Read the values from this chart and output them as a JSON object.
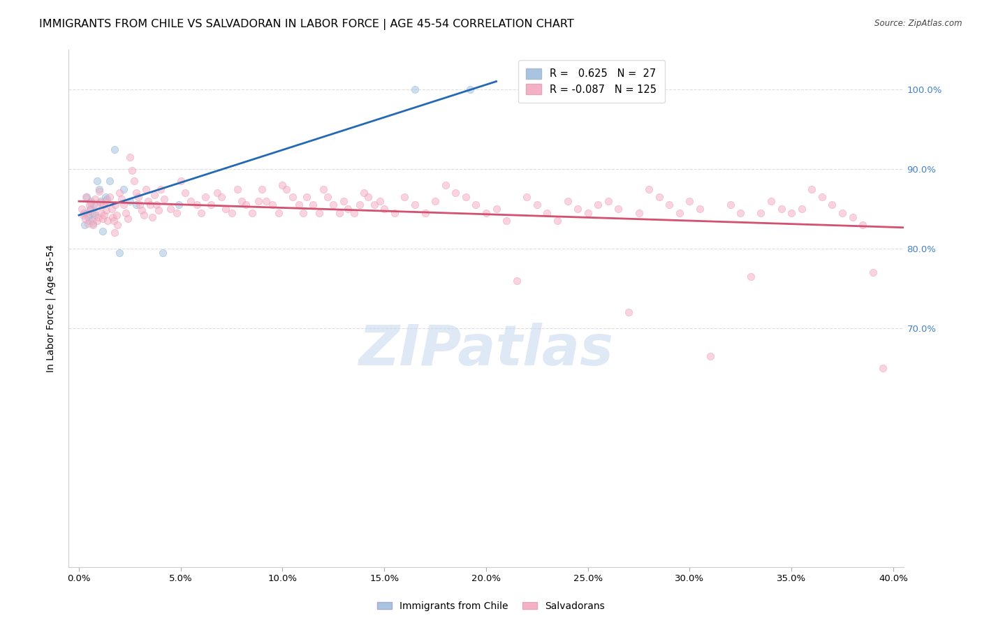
{
  "title": "IMMIGRANTS FROM CHILE VS SALVADORAN IN LABOR FORCE | AGE 45-54 CORRELATION CHART",
  "source": "Source: ZipAtlas.com",
  "ylabel": "In Labor Force | Age 45-54",
  "x_tick_labels": [
    "0.0%",
    "5.0%",
    "10.0%",
    "15.0%",
    "20.0%",
    "25.0%",
    "30.0%",
    "35.0%",
    "40.0%"
  ],
  "x_tick_values": [
    0.0,
    5.0,
    10.0,
    15.0,
    20.0,
    25.0,
    30.0,
    35.0,
    40.0
  ],
  "y_tick_labels": [
    "100.0%",
    "90.0%",
    "80.0%",
    "70.0%"
  ],
  "y_tick_values": [
    100.0,
    90.0,
    80.0,
    70.0
  ],
  "xlim": [
    -0.5,
    40.5
  ],
  "ylim": [
    40.0,
    105.0
  ],
  "watermark": "ZIPatlas",
  "blue_scatter_color": "#a8c4e0",
  "blue_edge_color": "#7aaace",
  "pink_scatter_color": "#f5b0c5",
  "pink_edge_color": "#e890aa",
  "blue_line_color": "#2469b3",
  "pink_line_color": "#d45070",
  "background_color": "#ffffff",
  "grid_color": "#dddddd",
  "title_fontsize": 11.5,
  "axis_label_fontsize": 10,
  "tick_fontsize": 9.5,
  "right_y_tick_color": "#4080cc",
  "scatter_size": 55,
  "scatter_alpha": 0.55,
  "blue_points": [
    [
      0.23,
      84.5
    ],
    [
      0.28,
      83.0
    ],
    [
      0.38,
      86.5
    ],
    [
      0.45,
      84.0
    ],
    [
      0.5,
      83.5
    ],
    [
      0.55,
      85.0
    ],
    [
      0.6,
      86.0
    ],
    [
      0.65,
      84.5
    ],
    [
      0.68,
      83.2
    ],
    [
      0.72,
      85.5
    ],
    [
      0.8,
      84.2
    ],
    [
      0.88,
      88.5
    ],
    [
      1.0,
      87.5
    ],
    [
      1.05,
      86.0
    ],
    [
      1.15,
      82.2
    ],
    [
      1.3,
      86.5
    ],
    [
      1.38,
      86.2
    ],
    [
      1.5,
      88.5
    ],
    [
      1.75,
      92.5
    ],
    [
      2.0,
      79.5
    ],
    [
      2.2,
      87.5
    ],
    [
      2.5,
      86.0
    ],
    [
      2.8,
      85.5
    ],
    [
      4.1,
      79.5
    ],
    [
      4.9,
      85.5
    ],
    [
      16.5,
      100.0
    ],
    [
      19.2,
      100.0
    ]
  ],
  "pink_points": [
    [
      0.15,
      85.0
    ],
    [
      0.22,
      84.2
    ],
    [
      0.3,
      83.8
    ],
    [
      0.35,
      86.5
    ],
    [
      0.4,
      84.5
    ],
    [
      0.45,
      83.2
    ],
    [
      0.5,
      85.5
    ],
    [
      0.55,
      84.8
    ],
    [
      0.6,
      85.8
    ],
    [
      0.65,
      83.5
    ],
    [
      0.7,
      83.0
    ],
    [
      0.75,
      84.5
    ],
    [
      0.8,
      86.2
    ],
    [
      0.85,
      85.5
    ],
    [
      0.9,
      83.5
    ],
    [
      0.95,
      84.0
    ],
    [
      1.0,
      87.2
    ],
    [
      1.05,
      85.8
    ],
    [
      1.1,
      84.5
    ],
    [
      1.15,
      83.8
    ],
    [
      1.2,
      85.5
    ],
    [
      1.25,
      84.2
    ],
    [
      1.3,
      86.0
    ],
    [
      1.35,
      84.8
    ],
    [
      1.4,
      83.5
    ],
    [
      1.5,
      86.5
    ],
    [
      1.6,
      85.0
    ],
    [
      1.65,
      84.0
    ],
    [
      1.7,
      83.5
    ],
    [
      1.75,
      82.0
    ],
    [
      1.8,
      85.5
    ],
    [
      1.85,
      84.2
    ],
    [
      1.9,
      83.0
    ],
    [
      2.0,
      87.0
    ],
    [
      2.1,
      86.2
    ],
    [
      2.2,
      85.5
    ],
    [
      2.3,
      84.5
    ],
    [
      2.4,
      83.8
    ],
    [
      2.5,
      91.5
    ],
    [
      2.6,
      89.8
    ],
    [
      2.7,
      88.5
    ],
    [
      2.8,
      87.0
    ],
    [
      2.9,
      86.5
    ],
    [
      3.0,
      85.5
    ],
    [
      3.1,
      84.8
    ],
    [
      3.2,
      84.2
    ],
    [
      3.3,
      87.5
    ],
    [
      3.4,
      86.0
    ],
    [
      3.5,
      85.5
    ],
    [
      3.6,
      84.0
    ],
    [
      3.7,
      86.8
    ],
    [
      3.8,
      85.5
    ],
    [
      3.9,
      84.8
    ],
    [
      4.0,
      87.5
    ],
    [
      4.2,
      86.2
    ],
    [
      4.5,
      85.0
    ],
    [
      4.8,
      84.5
    ],
    [
      5.0,
      88.5
    ],
    [
      5.2,
      87.0
    ],
    [
      5.5,
      86.0
    ],
    [
      5.8,
      85.5
    ],
    [
      6.0,
      84.5
    ],
    [
      6.2,
      86.5
    ],
    [
      6.5,
      85.5
    ],
    [
      6.8,
      87.0
    ],
    [
      7.0,
      86.5
    ],
    [
      7.2,
      85.0
    ],
    [
      7.5,
      84.5
    ],
    [
      7.8,
      87.5
    ],
    [
      8.0,
      86.0
    ],
    [
      8.2,
      85.5
    ],
    [
      8.5,
      84.5
    ],
    [
      8.8,
      86.0
    ],
    [
      9.0,
      87.5
    ],
    [
      9.2,
      86.0
    ],
    [
      9.5,
      85.5
    ],
    [
      9.8,
      84.5
    ],
    [
      10.0,
      88.0
    ],
    [
      10.2,
      87.5
    ],
    [
      10.5,
      86.5
    ],
    [
      10.8,
      85.5
    ],
    [
      11.0,
      84.5
    ],
    [
      11.2,
      86.5
    ],
    [
      11.5,
      85.5
    ],
    [
      11.8,
      84.5
    ],
    [
      12.0,
      87.5
    ],
    [
      12.2,
      86.5
    ],
    [
      12.5,
      85.5
    ],
    [
      12.8,
      84.5
    ],
    [
      13.0,
      86.0
    ],
    [
      13.2,
      85.0
    ],
    [
      13.5,
      84.5
    ],
    [
      13.8,
      85.5
    ],
    [
      14.0,
      87.0
    ],
    [
      14.2,
      86.5
    ],
    [
      14.5,
      85.5
    ],
    [
      14.8,
      86.0
    ],
    [
      15.0,
      85.0
    ],
    [
      15.5,
      84.5
    ],
    [
      16.0,
      86.5
    ],
    [
      16.5,
      85.5
    ],
    [
      17.0,
      84.5
    ],
    [
      17.5,
      86.0
    ],
    [
      18.0,
      88.0
    ],
    [
      18.5,
      87.0
    ],
    [
      19.0,
      86.5
    ],
    [
      19.5,
      85.5
    ],
    [
      20.0,
      84.5
    ],
    [
      20.5,
      85.0
    ],
    [
      21.0,
      83.5
    ],
    [
      21.5,
      76.0
    ],
    [
      22.0,
      86.5
    ],
    [
      22.5,
      85.5
    ],
    [
      23.0,
      84.5
    ],
    [
      23.5,
      83.5
    ],
    [
      24.0,
      86.0
    ],
    [
      24.5,
      85.0
    ],
    [
      25.0,
      84.5
    ],
    [
      25.5,
      85.5
    ],
    [
      26.0,
      86.0
    ],
    [
      26.5,
      85.0
    ],
    [
      27.0,
      72.0
    ],
    [
      27.5,
      84.5
    ],
    [
      28.0,
      87.5
    ],
    [
      28.5,
      86.5
    ],
    [
      29.0,
      85.5
    ],
    [
      29.5,
      84.5
    ],
    [
      30.0,
      86.0
    ],
    [
      30.5,
      85.0
    ],
    [
      31.0,
      66.5
    ],
    [
      32.0,
      85.5
    ],
    [
      32.5,
      84.5
    ],
    [
      33.0,
      76.5
    ],
    [
      33.5,
      84.5
    ],
    [
      34.0,
      86.0
    ],
    [
      34.5,
      85.0
    ],
    [
      35.0,
      84.5
    ],
    [
      35.5,
      85.0
    ],
    [
      36.0,
      87.5
    ],
    [
      36.5,
      86.5
    ],
    [
      37.0,
      85.5
    ],
    [
      37.5,
      84.5
    ],
    [
      38.0,
      84.0
    ],
    [
      38.5,
      83.0
    ],
    [
      39.0,
      77.0
    ],
    [
      39.5,
      65.0
    ]
  ],
  "blue_trend_x": [
    0.0,
    20.5
  ],
  "pink_trend_x": [
    0.0,
    40.5
  ]
}
